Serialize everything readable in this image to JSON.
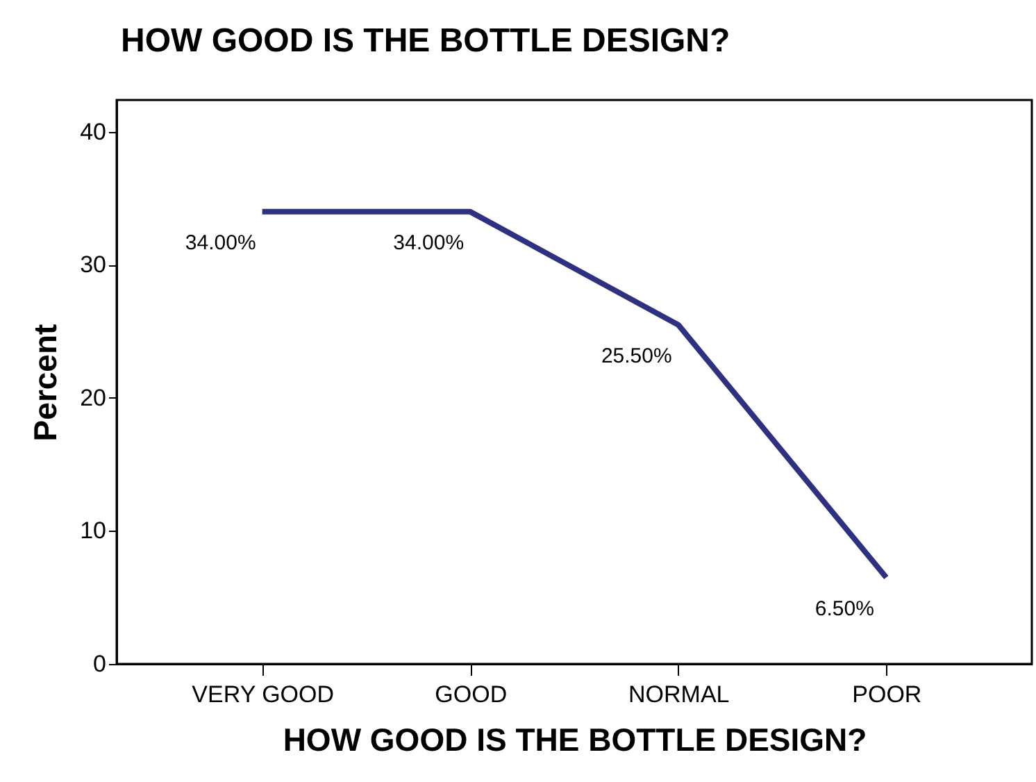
{
  "chart_data": {
    "type": "line",
    "title": "HOW GOOD IS THE BOTTLE DESIGN?",
    "xlabel": "HOW GOOD IS THE BOTTLE DESIGN?",
    "ylabel": "Percent",
    "categories": [
      "VERY GOOD",
      "GOOD",
      "NORMAL",
      "POOR"
    ],
    "series": [
      {
        "color": "#2e3180",
        "values": [
          34,
          34,
          25.5,
          6.5
        ],
        "value_labels": [
          "34.00%",
          "34.00%",
          "25.50%",
          "6.50%"
        ]
      }
    ],
    "ylim": [
      0,
      42.4
    ],
    "yticks": [
      0,
      10,
      20,
      30,
      40
    ],
    "grid": false,
    "legend": false,
    "marker": "none",
    "line_style": "solid"
  }
}
